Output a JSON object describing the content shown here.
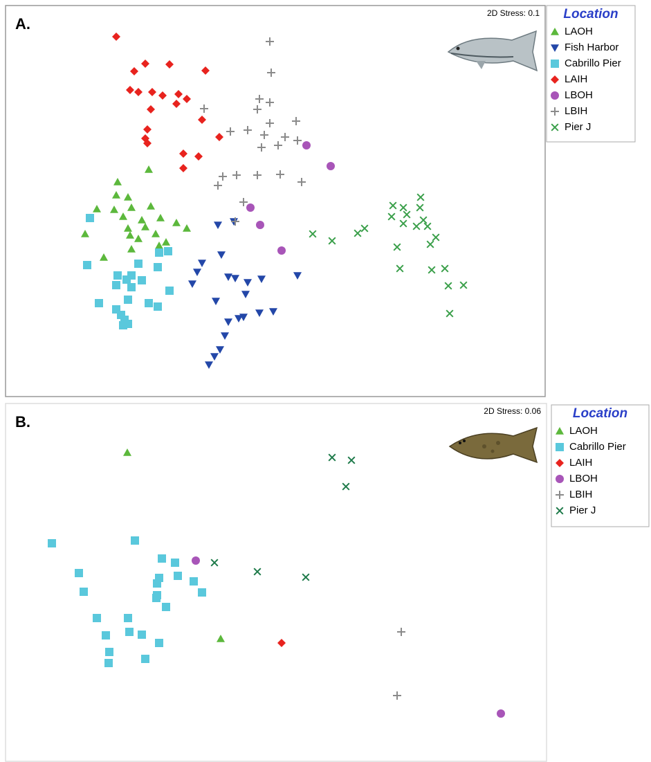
{
  "chart_data": [
    {
      "type": "scatter",
      "label": "A.",
      "annotation": "2D Stress: 0.1",
      "legend_title": "Location",
      "legend_title_color": "#2a3fc8",
      "xlim": [
        0,
        780
      ],
      "ylim": [
        565,
        0
      ],
      "series": [
        {
          "name": "LAOH",
          "color": "#5cb83c",
          "marker": "triangle",
          "x": [
            207,
            162,
            160,
            177,
            132,
            157,
            182,
            210,
            170,
            197,
            224,
            247,
            262,
            115,
            177,
            180,
            192,
            217,
            232,
            222,
            142,
            182,
            202
          ],
          "values": [
            237,
            255,
            274,
            277,
            294,
            295,
            292,
            290,
            305,
            310,
            307,
            314,
            322,
            330,
            322,
            332,
            337,
            330,
            342,
            347,
            364,
            352,
            320
          ]
        },
        {
          "name": "Fish Harbor",
          "color": "#2347a8",
          "marker": "triangle-down",
          "x": [
            307,
            330,
            312,
            284,
            277,
            270,
            322,
            332,
            350,
            370,
            422,
            304,
            347,
            367,
            387,
            337,
            322,
            344,
            317,
            310,
            302,
            294
          ],
          "values": [
            317,
            312,
            360,
            372,
            385,
            402,
            392,
            394,
            400,
            395,
            390,
            427,
            417,
            444,
            442,
            452,
            457,
            450,
            477,
            497,
            507,
            519
          ]
        },
        {
          "name": "Cabrillo Pier",
          "color": "#5ac8dc",
          "marker": "square",
          "x": [
            122,
            235,
            222,
            118,
            192,
            220,
            162,
            175,
            182,
            197,
            160,
            182,
            237,
            135,
            177,
            207,
            220,
            160,
            167,
            172,
            177,
            170
          ],
          "values": [
            307,
            355,
            357,
            375,
            373,
            378,
            390,
            396,
            390,
            397,
            404,
            407,
            412,
            430,
            425,
            430,
            435,
            439,
            447,
            454,
            460,
            462
          ]
        },
        {
          "name": "LAIH",
          "color": "#e8231e",
          "marker": "diamond",
          "x": [
            160,
            202,
            186,
            237,
            289,
            180,
            192,
            212,
            227,
            250,
            262,
            247,
            210,
            284,
            205,
            202,
            205,
            257,
            309,
            279,
            257
          ],
          "values": [
            45,
            84,
            95,
            85,
            94,
            122,
            125,
            125,
            130,
            128,
            135,
            142,
            150,
            165,
            179,
            192,
            199,
            214,
            190,
            218,
            235
          ]
        },
        {
          "name": "LBOH",
          "color": "#a855b8",
          "marker": "circle",
          "x": [
            435,
            470,
            354,
            368,
            399
          ],
          "values": [
            202,
            232,
            292,
            317,
            354
          ]
        },
        {
          "name": "LBIH",
          "color": "#8a8a8a",
          "marker": "plus",
          "x": [
            382,
            384,
            367,
            382,
            364,
            287,
            382,
            420,
            325,
            350,
            374,
            404,
            422,
            370,
            394,
            314,
            334,
            364,
            397,
            428,
            307,
            344,
            332
          ],
          "values": [
            52,
            97,
            135,
            140,
            150,
            149,
            170,
            167,
            182,
            180,
            187,
            190,
            195,
            205,
            202,
            247,
            245,
            245,
            244,
            255,
            260,
            284,
            312
          ]
        },
        {
          "name": "Pier J",
          "color": "#3a9f4a",
          "marker": "cross",
          "x": [
            560,
            600,
            575,
            599,
            580,
            558,
            604,
            575,
            594,
            610,
            519,
            509,
            444,
            472,
            622,
            614,
            566,
            570,
            616,
            635,
            640,
            662,
            642
          ],
          "values": [
            289,
            277,
            292,
            292,
            302,
            305,
            310,
            315,
            319,
            319,
            322,
            329,
            330,
            340,
            335,
            345,
            349,
            380,
            382,
            380,
            405,
            404,
            445
          ]
        }
      ]
    },
    {
      "type": "scatter",
      "label": "B.",
      "annotation": "2D Stress: 0.06",
      "legend_title": "Location",
      "legend_title_color": "#2a3fc8",
      "xlim": [
        0,
        782
      ],
      "ylim": [
        517,
        0
      ],
      "series": [
        {
          "name": "LAOH",
          "color": "#5cb83c",
          "marker": "triangle",
          "x": [
            176,
            311
          ],
          "values": [
            71,
            340
          ]
        },
        {
          "name": "Cabrillo Pier",
          "color": "#5ac8dc",
          "marker": "square",
          "x": [
            67,
            187,
            226,
            245,
            106,
            222,
            249,
            219,
            272,
            113,
            219,
            284,
            218,
            232,
            132,
            177,
            179,
            197,
            145,
            222,
            150,
            202,
            149
          ],
          "values": [
            202,
            198,
            224,
            230,
            245,
            252,
            249,
            260,
            257,
            272,
            277,
            273,
            281,
            294,
            310,
            310,
            330,
            334,
            335,
            346,
            359,
            369,
            375
          ]
        },
        {
          "name": "LAIH",
          "color": "#e8231e",
          "marker": "diamond",
          "x": [
            399
          ],
          "values": [
            346
          ]
        },
        {
          "name": "LBOH",
          "color": "#a855b8",
          "marker": "circle",
          "x": [
            275,
            716
          ],
          "values": [
            227,
            448
          ]
        },
        {
          "name": "LBIH",
          "color": "#8a8a8a",
          "marker": "plus",
          "x": [
            572,
            566
          ],
          "values": [
            330,
            422
          ]
        },
        {
          "name": "Pier J",
          "color": "#1e7a4a",
          "marker": "cross",
          "x": [
            472,
            500,
            492,
            302,
            364,
            434
          ],
          "values": [
            78,
            82,
            120,
            230,
            243,
            251
          ]
        }
      ]
    }
  ]
}
